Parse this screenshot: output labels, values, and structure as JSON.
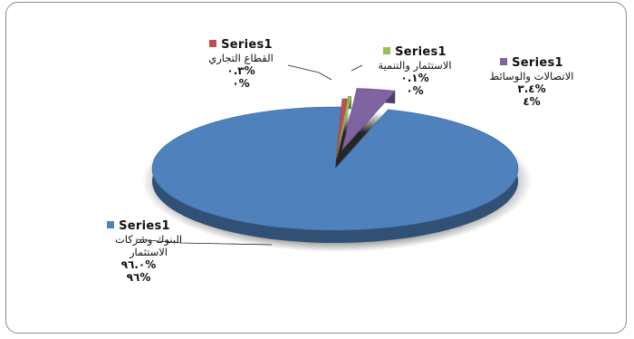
{
  "chart_data": {
    "type": "pie",
    "series_name": "Series1",
    "slices": [
      {
        "label": "البنوك وشركات الاستثمار",
        "value": 96.0,
        "value_text": "٩٦.٠%",
        "percent_text": "٩٦%",
        "color": "#4f81bd"
      },
      {
        "label": "القطاع التجاري",
        "value": 0.3,
        "value_text": "٠.٣%",
        "percent_text": "٠%",
        "color": "#c0504d"
      },
      {
        "label": "الاستثمار والتنمية",
        "value": 0.1,
        "value_text": "٠.١%",
        "percent_text": "٠%",
        "color": "#9bbb59"
      },
      {
        "label": "الاتصالات والوسائط",
        "value": 3.4,
        "value_text": "٣.٤%",
        "percent_text": "٤%",
        "color": "#8064a2"
      }
    ]
  }
}
